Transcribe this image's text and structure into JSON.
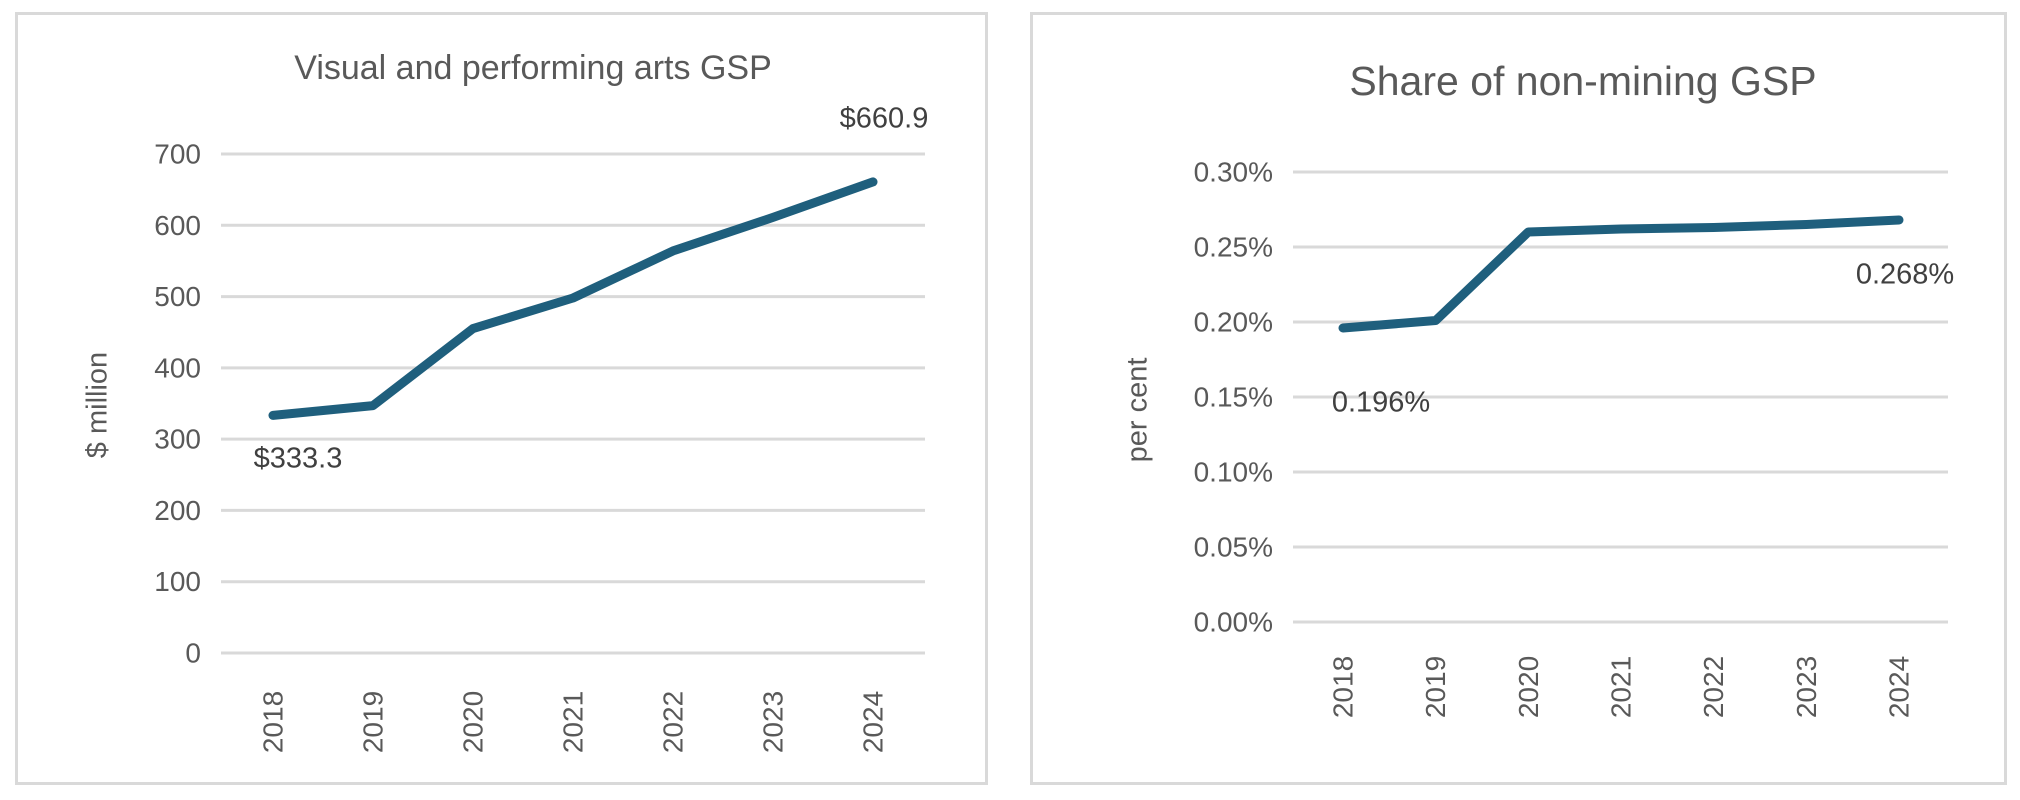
{
  "page_background": "#ffffff",
  "chart_data": [
    {
      "type": "line",
      "title": "Visual and performing arts GSP",
      "ylabel": "$ million",
      "xlabel": "",
      "categories": [
        "2018",
        "2019",
        "2020",
        "2021",
        "2022",
        "2023",
        "2024"
      ],
      "values": [
        333.3,
        347,
        455,
        498,
        564,
        611,
        660.9
      ],
      "ylim": [
        0,
        700
      ],
      "ytick_labels": [
        "0",
        "100",
        "200",
        "300",
        "400",
        "500",
        "600",
        "700"
      ],
      "grid": true,
      "legend": "none",
      "line_color": "#1f5f7d",
      "gridline_color": "#d9d9d9",
      "tick_color": "#595959",
      "point_labels": {
        "first": "$333.3",
        "last": "$660.9"
      }
    },
    {
      "type": "line",
      "title": "Share of non-mining GSP",
      "ylabel": "per cent",
      "xlabel": "",
      "categories": [
        "2018",
        "2019",
        "2020",
        "2021",
        "2022",
        "2023",
        "2024"
      ],
      "values": [
        0.196,
        0.201,
        0.26,
        0.262,
        0.263,
        0.265,
        0.268
      ],
      "ylim": [
        0,
        0.3
      ],
      "ytick_labels": [
        "0.00%",
        "0.05%",
        "0.10%",
        "0.15%",
        "0.20%",
        "0.25%",
        "0.30%"
      ],
      "grid": true,
      "legend": "none",
      "line_color": "#1f5f7d",
      "gridline_color": "#d9d9d9",
      "tick_color": "#595959",
      "point_labels": {
        "first": "0.196%",
        "last": "0.268%"
      }
    }
  ]
}
